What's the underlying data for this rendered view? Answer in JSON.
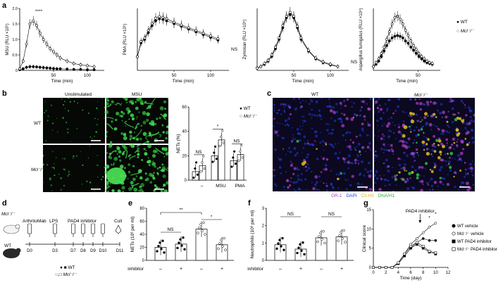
{
  "panels": {
    "a": "a",
    "b": "b",
    "c": "c",
    "d": "d",
    "e": "e",
    "f": "f",
    "g": "g"
  },
  "panel_a": {
    "chart_data": [
      {
        "type": "line",
        "ylabel": "MSU (RLU ×10⁵)",
        "xlabel": "Time (min)",
        "xticks": [
          "50",
          "100"
        ],
        "yticks": [
          "0",
          "0.5",
          "1.0",
          "1.5",
          "2.0"
        ],
        "ylim": [
          0,
          2.0
        ],
        "xlim": [
          0,
          125
        ],
        "annotation": "****",
        "series": [
          {
            "name": "WT",
            "x": [
              0,
              5,
              10,
              15,
              20,
              25,
              30,
              35,
              40,
              45,
              50,
              55,
              60,
              70,
              80,
              90,
              100,
              110
            ],
            "y": [
              0.02,
              0.05,
              0.1,
              0.12,
              0.12,
              0.11,
              0.1,
              0.09,
              0.08,
              0.07,
              0.06,
              0.05,
              0.05,
              0.04,
              0.03,
              0.03,
              0.02,
              0.02
            ]
          },
          {
            "name": "Mcl-/-",
            "x": [
              0,
              5,
              10,
              15,
              20,
              25,
              30,
              35,
              40,
              45,
              50,
              55,
              60,
              70,
              80,
              90,
              100,
              110
            ],
            "y": [
              0.05,
              0.3,
              0.85,
              1.5,
              1.6,
              1.45,
              1.2,
              1.0,
              0.85,
              0.7,
              0.6,
              0.5,
              0.4,
              0.3,
              0.22,
              0.18,
              0.15,
              0.12
            ]
          }
        ]
      },
      {
        "type": "line",
        "ylabel": "PMA (RLU ×10⁵)",
        "xlabel": "Time (min)",
        "xticks": [
          "50",
          "100"
        ],
        "annotation": "NS",
        "series": [
          {
            "name": "WT",
            "x": [
              0,
              5,
              10,
              15,
              20,
              25,
              30,
              35,
              40,
              50,
              60,
              70,
              80,
              90,
              100,
              110
            ],
            "y": [
              0.2,
              0.4,
              0.45,
              0.55,
              0.65,
              0.72,
              0.75,
              0.74,
              0.72,
              0.68,
              0.64,
              0.6,
              0.56,
              0.52,
              0.48,
              0.44
            ]
          },
          {
            "name": "Mcl-/-",
            "x": [
              0,
              5,
              10,
              15,
              20,
              25,
              30,
              35,
              40,
              50,
              60,
              70,
              80,
              90,
              100,
              110
            ],
            "y": [
              0.2,
              0.42,
              0.47,
              0.58,
              0.68,
              0.76,
              0.78,
              0.77,
              0.75,
              0.7,
              0.66,
              0.62,
              0.58,
              0.54,
              0.5,
              0.46
            ]
          }
        ]
      },
      {
        "type": "line",
        "ylabel": "Zymosan (RLU ×10⁵)",
        "xlabel": "Time (min)",
        "xticks": [
          "50",
          "100"
        ],
        "annotation": "NS",
        "series": [
          {
            "name": "WT",
            "x": [
              0,
              5,
              10,
              15,
              20,
              25,
              30,
              35,
              40,
              45,
              50,
              55,
              60,
              70,
              80,
              90,
              100,
              110
            ],
            "y": [
              0.03,
              0.05,
              0.08,
              0.12,
              0.18,
              0.28,
              0.4,
              0.55,
              0.68,
              0.72,
              0.68,
              0.55,
              0.4,
              0.25,
              0.15,
              0.1,
              0.07,
              0.05
            ]
          },
          {
            "name": "Mcl-/-",
            "x": [
              0,
              5,
              10,
              15,
              20,
              25,
              30,
              35,
              40,
              45,
              50,
              55,
              60,
              70,
              80,
              90,
              100,
              110
            ],
            "y": [
              0.03,
              0.05,
              0.09,
              0.13,
              0.2,
              0.3,
              0.42,
              0.58,
              0.7,
              0.75,
              0.7,
              0.57,
              0.42,
              0.26,
              0.16,
              0.11,
              0.08,
              0.05
            ]
          }
        ]
      },
      {
        "type": "line",
        "ylabel": "Aspergillus fumigatus (RLU ×10⁴)",
        "xlabel": "Time (min)",
        "xticks": [
          "50"
        ],
        "annotation": "**",
        "series": [
          {
            "name": "WT",
            "x": [
              0,
              3,
              6,
              9,
              12,
              15,
              18,
              21,
              24,
              27,
              30,
              33,
              36,
              39,
              42,
              45,
              48,
              51,
              54,
              57,
              60,
              63,
              66
            ],
            "y": [
              0.05,
              0.08,
              0.12,
              0.18,
              0.25,
              0.32,
              0.38,
              0.42,
              0.44,
              0.45,
              0.44,
              0.42,
              0.38,
              0.35,
              0.3,
              0.26,
              0.22,
              0.18,
              0.15,
              0.12,
              0.1,
              0.09,
              0.08
            ]
          },
          {
            "name": "Mcl-/-",
            "x": [
              0,
              3,
              6,
              9,
              12,
              15,
              18,
              21,
              24,
              27,
              30,
              33,
              36,
              39,
              42,
              45,
              48,
              51,
              54,
              57,
              60,
              63,
              66
            ],
            "y": [
              0.05,
              0.1,
              0.15,
              0.22,
              0.3,
              0.4,
              0.5,
              0.6,
              0.68,
              0.7,
              0.66,
              0.6,
              0.52,
              0.45,
              0.38,
              0.32,
              0.27,
              0.22,
              0.18,
              0.15,
              0.12,
              0.1,
              0.09
            ]
          }
        ]
      }
    ],
    "legend": [
      {
        "marker": "filled-circle",
        "label": "WT"
      },
      {
        "marker": "open-circle",
        "label": "Mcl⁻/⁻"
      }
    ]
  },
  "panel_b": {
    "col_unstim": "Unstimulated",
    "col_msu": "MSU",
    "row_wt": "WT",
    "row_ko": "Mcl⁻/⁻",
    "chart_data": {
      "type": "bar",
      "ylabel": "NETs (%)",
      "yticks": [
        "0",
        "20",
        "40",
        "60"
      ],
      "ylim": [
        0,
        60
      ],
      "categories": [
        "–",
        "MSU",
        "PMA"
      ],
      "series": [
        {
          "name": "WT",
          "values": [
            7,
            20,
            16
          ]
        },
        {
          "name": "Mcl⁻/⁻",
          "values": [
            12,
            33,
            21
          ]
        }
      ],
      "annotations": [
        "NS",
        "*",
        "NS"
      ]
    },
    "legend": [
      {
        "label": "WT"
      },
      {
        "label": "Mcl⁻/⁻"
      }
    ]
  },
  "panel_c": {
    "col_wt": "WT",
    "col_ko": "Mcl⁻/⁻",
    "stain": {
      "gr1": "GR-1",
      "dapi": "DAPI",
      "cith3": "Cit-H3",
      "dna": "DNA/H1"
    },
    "colors": {
      "gr1": "#b040c0",
      "dapi": "#2040e0",
      "cith3": "#e0c020",
      "dna": "#30c040"
    }
  },
  "panel_d": {
    "genotype_top": "Mcl⁻/⁻",
    "genotype_bottom": "WT",
    "arthrito": "ArthritoMab",
    "lps": "LPS",
    "pad4": "PAD4 inhibitor",
    "cull": "Cull",
    "days": [
      "D0",
      "D3",
      "D7",
      "D8",
      "D9",
      "D10",
      "D11"
    ],
    "legend_wt": "WT",
    "legend_ko": "Mcl⁻/⁻"
  },
  "panel_e": {
    "chart_data": {
      "type": "bar",
      "ylabel": "NETs (10³ per ml)",
      "yticks": [
        "0",
        "20",
        "40",
        "60",
        "80"
      ],
      "ylim": [
        0,
        80
      ],
      "categories": [
        "WT –",
        "WT +",
        "Mcl⁻/⁻ –",
        "Mcl⁻/⁻ +"
      ],
      "values": [
        20,
        25,
        48,
        24
      ],
      "treatment_label": "PAD4 inhibitor",
      "treatment": [
        "–",
        "+",
        "–",
        "+"
      ],
      "annotations": [
        "**",
        "*",
        "NS"
      ]
    }
  },
  "panel_f": {
    "chart_data": {
      "type": "bar",
      "ylabel": "Neutrophils (10⁶ per ml)",
      "yticks": [
        "0",
        "1",
        "2",
        "3"
      ],
      "ylim": [
        0,
        3
      ],
      "categories": [
        "WT –",
        "WT +",
        "Mcl⁻/⁻ –",
        "Mcl⁻/⁻ +"
      ],
      "values": [
        0.9,
        0.65,
        1.3,
        1.35
      ],
      "treatment_label": "PAD4 inhibitor",
      "treatment": [
        "–",
        "+",
        "–",
        "+"
      ],
      "annotations": [
        "NS",
        "NS"
      ]
    }
  },
  "panel_g": {
    "chart_data": {
      "type": "line",
      "ylabel": "Clinical score",
      "xlabel": "Time (day)",
      "xticks": [
        "0",
        "2",
        "4",
        "6",
        "8",
        "10",
        "12"
      ],
      "yticks": [
        "0",
        "5",
        "10",
        "15"
      ],
      "xlim": [
        0,
        12
      ],
      "ylim": [
        0,
        15
      ],
      "arrow_label": "PAD4 inhibitor",
      "annotation": "*",
      "series": [
        {
          "name": "WT vehicle",
          "x": [
            0,
            1,
            2,
            3,
            4,
            5,
            6,
            7,
            8,
            9,
            10
          ],
          "y": [
            0,
            0,
            0,
            0,
            1,
            3,
            5,
            6.5,
            7.5,
            7,
            7
          ]
        },
        {
          "name": "Mcl⁻/⁻ vehicle",
          "x": [
            0,
            1,
            2,
            3,
            4,
            5,
            6,
            7,
            8,
            9,
            10
          ],
          "y": [
            0,
            0,
            0,
            0,
            1.2,
            3.5,
            6,
            7.5,
            9,
            10.5,
            11.5
          ]
        },
        {
          "name": "WT PAD4 inhibitor",
          "x": [
            0,
            1,
            2,
            3,
            4,
            5,
            6,
            7,
            8,
            9,
            10
          ],
          "y": [
            0,
            0,
            0,
            0,
            1,
            3,
            5,
            6,
            5,
            4,
            3.5
          ]
        },
        {
          "name": "Mcl⁻/⁻ PAD4 inhibitor",
          "x": [
            0,
            1,
            2,
            3,
            4,
            5,
            6,
            7,
            8,
            9,
            10
          ],
          "y": [
            0,
            0,
            0,
            0,
            1.2,
            3.5,
            5.5,
            6.5,
            5.5,
            4.2,
            3.8
          ]
        }
      ]
    }
  }
}
